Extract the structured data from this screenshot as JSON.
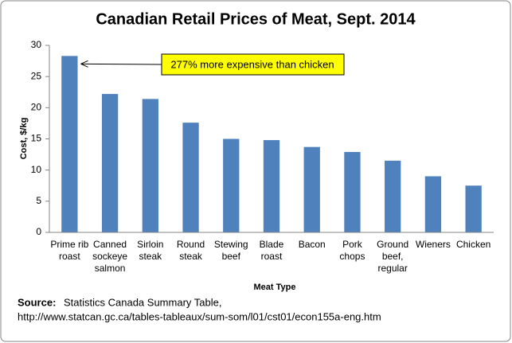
{
  "chart_data": {
    "type": "bar",
    "title": "Canadian Retail Prices of Meat, Sept. 2014",
    "x_label": "Meat Type",
    "y_label": "Cost, $/kg",
    "categories": [
      "Prime rib roast",
      "Canned sockeye salmon",
      "Sirloin steak",
      "Round steak",
      "Stewing beef",
      "Blade roast",
      "Bacon",
      "Pork chops",
      "Ground beef, regular",
      "Wieners",
      "Chicken"
    ],
    "values": [
      28.3,
      22.2,
      21.4,
      17.6,
      15.0,
      14.8,
      13.7,
      12.9,
      11.5,
      9.0,
      7.5
    ],
    "color": "#4f81bd",
    "ylim": [
      0,
      30
    ],
    "yticks": [
      0,
      5,
      10,
      15,
      20,
      25,
      30
    ],
    "annotation": "277% more expensive than chicken",
    "source_label": "Source:",
    "source_text": "Statistics Canada Summary Table,",
    "source_url": "http://www.statcan.gc.ca/tables-tableaux/sum-som/l01/cst01/econ155a-eng.htm"
  }
}
